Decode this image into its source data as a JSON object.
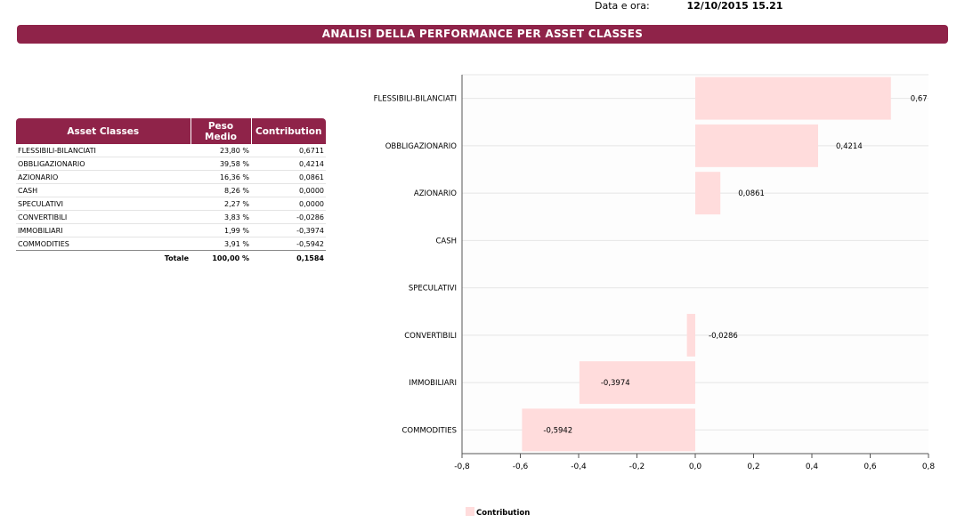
{
  "header": {
    "datetime_label": "Data e ora:",
    "datetime_value": "12/10/2015  15.21",
    "banner_title": "ANALISI DELLA PERFORMANCE PER ASSET CLASSES"
  },
  "table": {
    "headers": [
      "Asset Classes",
      "Peso Medio",
      "Contribution"
    ],
    "rows": [
      {
        "name": "FLESSIBILI-BILANCIATI",
        "peso": "23,80 %",
        "contribution": "0,6711"
      },
      {
        "name": "OBBLIGAZIONARIO",
        "peso": "39,58 %",
        "contribution": "0,4214"
      },
      {
        "name": "AZIONARIO",
        "peso": "16,36 %",
        "contribution": "0,0861"
      },
      {
        "name": "CASH",
        "peso": "8,26 %",
        "contribution": "0,0000"
      },
      {
        "name": "SPECULATIVI",
        "peso": "2,27 %",
        "contribution": "0,0000"
      },
      {
        "name": "CONVERTIBILI",
        "peso": "3,83 %",
        "contribution": "-0,0286"
      },
      {
        "name": "IMMOBILIARI",
        "peso": "1,99 %",
        "contribution": "-0,3974"
      },
      {
        "name": "COMMODITIES",
        "peso": "3,91 %",
        "contribution": "-0,5942"
      }
    ],
    "total": {
      "label": "Totale",
      "peso": "100,00 %",
      "contribution": "0,1584"
    }
  },
  "chart_data": {
    "type": "bar",
    "orientation": "horizontal",
    "categories": [
      "FLESSIBILI-BILANCIATI",
      "OBBLIGAZIONARIO",
      "AZIONARIO",
      "CASH",
      "SPECULATIVI",
      "CONVERTIBILI",
      "IMMOBILIARI",
      "COMMODITIES"
    ],
    "series": [
      {
        "name": "Contribution",
        "values": [
          0.6711,
          0.4214,
          0.0861,
          0,
          0,
          -0.0286,
          -0.3974,
          -0.5942
        ]
      }
    ],
    "data_labels": [
      "0,67",
      "0,4214",
      "0,0861",
      "",
      "",
      "-0,0286",
      "-0,3974",
      "-0,5942"
    ],
    "xlim": [
      -0.8,
      0.8
    ],
    "xticks": [
      -0.8,
      -0.6,
      -0.4,
      -0.2,
      0.0,
      0.2,
      0.4,
      0.6,
      0.8
    ],
    "xtick_labels": [
      "-0,8",
      "-0,6",
      "-0,4",
      "-0,2",
      "0,0",
      "0,2",
      "0,4",
      "0,6",
      "0,8"
    ],
    "bar_color": "#ffdcdc",
    "grid": true,
    "legend": "bottom-left"
  }
}
